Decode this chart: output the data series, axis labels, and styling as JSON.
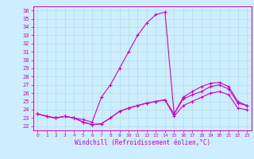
{
  "bg_color": "#cceeff",
  "line_color": "#cc00cc",
  "xlim": [
    -0.5,
    23.5
  ],
  "ylim": [
    21.5,
    36.5
  ],
  "yticks": [
    22,
    23,
    24,
    25,
    26,
    27,
    28,
    29,
    30,
    31,
    32,
    33,
    34,
    35,
    36
  ],
  "xticks": [
    0,
    1,
    2,
    3,
    4,
    5,
    6,
    7,
    8,
    9,
    10,
    11,
    12,
    13,
    14,
    15,
    16,
    17,
    18,
    19,
    20,
    21,
    22,
    23
  ],
  "xlabel": "Windchill (Refroidissement éolien,°C)",
  "series1_x": [
    0,
    1,
    2,
    3,
    4,
    5,
    6,
    7,
    8,
    9,
    10,
    11,
    12,
    13,
    14,
    15,
    16,
    17,
    18,
    19,
    20,
    21,
    22,
    23
  ],
  "series1_y": [
    23.5,
    23.2,
    23.0,
    23.2,
    23.0,
    22.8,
    22.5,
    25.5,
    27.0,
    29.0,
    31.0,
    33.0,
    34.5,
    35.5,
    35.8,
    23.5,
    25.5,
    26.2,
    26.8,
    27.2,
    27.3,
    26.8,
    25.0,
    24.5
  ],
  "series2_x": [
    0,
    1,
    2,
    3,
    4,
    5,
    6,
    7,
    8,
    9,
    10,
    11,
    12,
    13,
    14,
    15,
    16,
    17,
    18,
    19,
    20,
    21,
    22,
    23
  ],
  "series2_y": [
    23.5,
    23.2,
    23.0,
    23.2,
    23.0,
    22.5,
    22.2,
    22.3,
    23.0,
    23.8,
    24.2,
    24.5,
    24.8,
    25.0,
    25.2,
    23.5,
    25.3,
    25.8,
    26.2,
    26.8,
    27.0,
    26.5,
    24.8,
    24.5
  ],
  "series3_x": [
    0,
    1,
    2,
    3,
    4,
    5,
    6,
    7,
    8,
    9,
    10,
    11,
    12,
    13,
    14,
    15,
    16,
    17,
    18,
    19,
    20,
    21,
    22,
    23
  ],
  "series3_y": [
    23.5,
    23.2,
    23.0,
    23.2,
    23.0,
    22.5,
    22.2,
    22.3,
    23.0,
    23.8,
    24.2,
    24.5,
    24.8,
    25.0,
    25.2,
    23.2,
    24.5,
    25.0,
    25.5,
    26.0,
    26.2,
    25.8,
    24.2,
    24.0
  ],
  "tick_fontsize": 5,
  "xlabel_fontsize": 5.5
}
